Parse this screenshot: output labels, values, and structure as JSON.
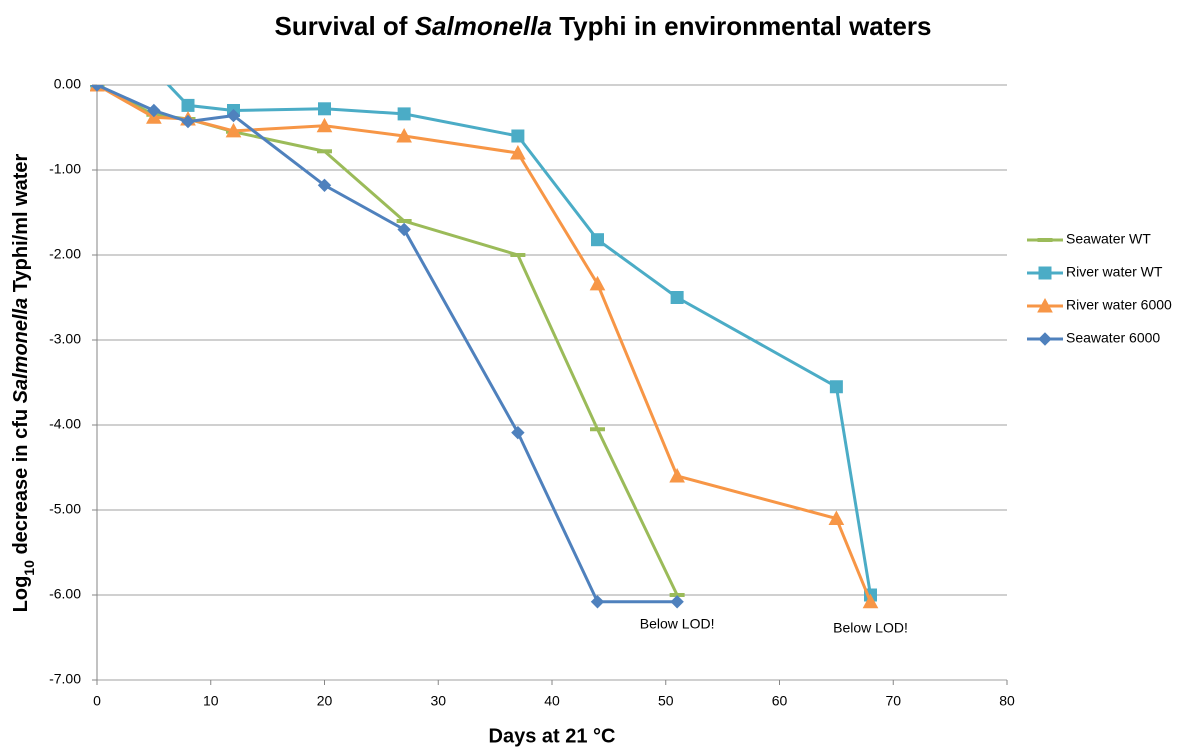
{
  "chart_data": {
    "type": "line",
    "title": {
      "before": "Survival of",
      "italic": "Salmonella",
      "after": "Typhi in environmental waters"
    },
    "y_label": {
      "before": "Log",
      "subscript": "10",
      "middle": "decrease in cfu",
      "italic": "Salmonella",
      "after": "Typhi/ml water"
    },
    "x_label": "Days at 21 °C",
    "xlim": [
      0,
      80
    ],
    "xticks": [
      0,
      10,
      20,
      30,
      40,
      50,
      60,
      70,
      80
    ],
    "ylim": [
      -7,
      0
    ],
    "yticks": [
      {
        "value": 0,
        "label": "0.00"
      },
      {
        "value": -1,
        "label": "-1.00"
      },
      {
        "value": -2,
        "label": "-2.00"
      },
      {
        "value": -3,
        "label": "-3.00"
      },
      {
        "value": -4,
        "label": "-4.00"
      },
      {
        "value": -5,
        "label": "-5.00"
      },
      {
        "value": -6,
        "label": "-6.00"
      },
      {
        "value": -7,
        "label": "-7.00"
      }
    ],
    "grid": true,
    "legend": "right",
    "series": [
      {
        "name": "Seawater WT",
        "color": "#9bbb59",
        "marker": "dash",
        "x": [
          0,
          5,
          8,
          12,
          20,
          27,
          37,
          44,
          51
        ],
        "values": [
          0,
          -0.35,
          -0.4,
          -0.55,
          -0.78,
          -1.6,
          -2.0,
          -4.05,
          -6.0
        ]
      },
      {
        "name": "River water WT",
        "color": "#4bacc6",
        "marker": "square",
        "x": [
          0,
          5,
          8,
          12,
          20,
          27,
          37,
          44,
          51,
          65,
          68
        ],
        "values": [
          0,
          0.18,
          -0.24,
          -0.3,
          -0.28,
          -0.34,
          -0.6,
          -1.82,
          -2.5,
          -3.55,
          -6.0
        ]
      },
      {
        "name": "River water 6000",
        "color": "#f79646",
        "marker": "triangle",
        "x": [
          0,
          5,
          8,
          12,
          20,
          27,
          37,
          44,
          51,
          65,
          68
        ],
        "values": [
          0,
          -0.38,
          -0.4,
          -0.54,
          -0.48,
          -0.6,
          -0.8,
          -2.34,
          -4.6,
          -5.1,
          -6.08
        ]
      },
      {
        "name": "Seawater 6000",
        "color": "#4f81bd",
        "marker": "diamond",
        "x": [
          0,
          5,
          8,
          12,
          20,
          27,
          37,
          44,
          51
        ],
        "values": [
          0,
          -0.3,
          -0.43,
          -0.36,
          -1.18,
          -1.7,
          -4.09,
          -6.08,
          -6.08
        ]
      }
    ],
    "annotations": [
      {
        "text": "Below LOD!",
        "x": 51,
        "y": -6.35
      },
      {
        "text": "Below LOD!",
        "x": 68,
        "y": -6.4
      }
    ]
  }
}
